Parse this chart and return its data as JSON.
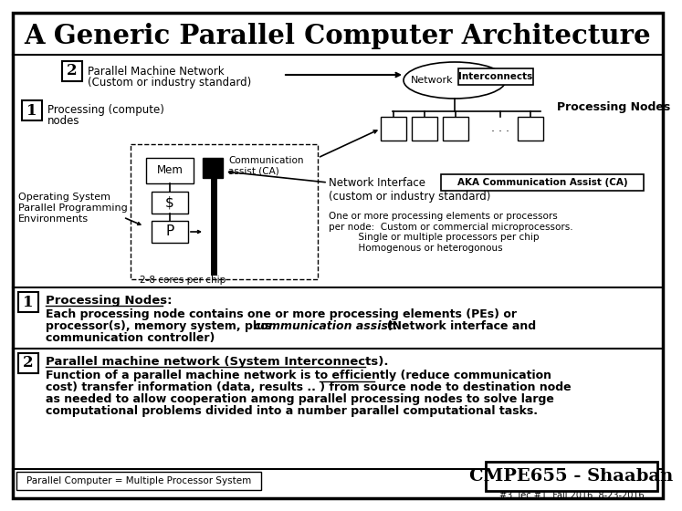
{
  "title": "A Generic Parallel Computer Architecture",
  "bg_color": "#ffffff",
  "border_color": "#000000",
  "network_label": "Network",
  "interconnects_label": "Interconnects",
  "processing_nodes_title": "Processing Nodes",
  "comm_assist_label": "Communication\nassist (CA)",
  "mem_label": "Mem",
  "cache_label": "$",
  "proc_label": "P",
  "cores_label": "2-8 cores per chip",
  "os_text": "Operating System\nParallel Programming\nEnvironments",
  "aka_label": "AKA Communication Assist (CA)",
  "network_interface_line1": "Network Interface",
  "network_interface_line2": "(custom or industry standard)",
  "one_or_more_text": "One or more processing elements or processors\nper node:  Custom or commercial microprocessors.\n          Single or multiple processors per chip\n          Homogenous or heterogonous",
  "section1_title": "Processing Nodes:",
  "section1_line1": "Each processing node contains one or more processing elements (PEs) or",
  "section1_line2pre": "processor(s), memory system, plus ",
  "section1_line2italic": "communication assist:",
  "section1_line2post": "  (Network interface and",
  "section1_line3": "communication controller)",
  "section2_title": "Parallel machine network (System Interconnects).",
  "section2_line1": "Function of a parallel machine network is to efficiently (reduce communication",
  "section2_line2": "cost) transfer information (data, results .. ) from source node to destination node",
  "section2_line3": "as needed to allow cooperation among parallel processing nodes to solve large",
  "section2_line4": "computational problems divided into a number parallel computational tasks.",
  "footer_left": "Parallel Computer = Multiple Processor System",
  "footer_right": "CMPE655 - Shaaban",
  "footer_bottom": "#3  lec #1  Fall 2016  8-23-2016"
}
